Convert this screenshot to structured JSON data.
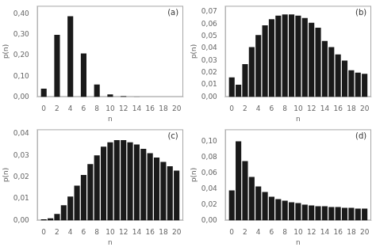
{
  "chart_data": [
    {
      "type": "bar",
      "x": [
        0,
        1,
        2,
        3,
        4,
        5,
        6,
        7,
        8,
        9,
        10,
        11,
        12,
        13,
        14,
        15,
        16,
        17,
        18,
        19,
        20
      ],
      "values": [
        0.04,
        0.0,
        0.3,
        0.0,
        0.39,
        0.0,
        0.21,
        0.0,
        0.06,
        0.0,
        0.012,
        0.0,
        0.003,
        0.0,
        0.0005,
        0.0,
        0.0,
        0.0,
        0.0,
        0.0,
        0.0
      ],
      "color": "#1a1a1a",
      "xlim": [
        -1.0,
        21.0
      ],
      "xticks": [
        0,
        2,
        4,
        6,
        8,
        10,
        12,
        14,
        16,
        18,
        20
      ],
      "ylim": [
        0,
        0.44
      ],
      "yticks": [
        {
          "value": 0.0,
          "label": "0,00"
        },
        {
          "value": 0.1,
          "label": "0,10"
        },
        {
          "value": 0.2,
          "label": "0,20"
        },
        {
          "value": 0.3,
          "label": "0,30"
        },
        {
          "value": 0.4,
          "label": "0,40"
        }
      ],
      "xlabel": "n",
      "ylabel": "p(n)",
      "annotations": [
        "(a)"
      ],
      "grid": false
    },
    {
      "type": "bar",
      "x": [
        0,
        1,
        2,
        3,
        4,
        5,
        6,
        7,
        8,
        9,
        10,
        11,
        12,
        13,
        14,
        15,
        16,
        17,
        18,
        19,
        20
      ],
      "values": [
        0.016,
        0.01,
        0.027,
        0.041,
        0.051,
        0.059,
        0.064,
        0.067,
        0.068,
        0.068,
        0.067,
        0.065,
        0.061,
        0.057,
        0.046,
        0.041,
        0.035,
        0.03,
        0.022,
        0.02,
        0.019
      ],
      "color": "#1a1a1a",
      "xlim": [
        -1.0,
        21.0
      ],
      "xticks": [
        0,
        2,
        4,
        6,
        8,
        10,
        12,
        14,
        16,
        18,
        20
      ],
      "ylim": [
        0,
        0.075
      ],
      "yticks": [
        {
          "value": 0.0,
          "label": "0,00"
        },
        {
          "value": 0.01,
          "label": "0,01"
        },
        {
          "value": 0.02,
          "label": "0,02"
        },
        {
          "value": 0.03,
          "label": "0,03"
        },
        {
          "value": 0.04,
          "label": "0,04"
        },
        {
          "value": 0.05,
          "label": "0,05"
        },
        {
          "value": 0.06,
          "label": "0,06"
        },
        {
          "value": 0.07,
          "label": "0,07"
        }
      ],
      "xlabel": "n",
      "ylabel": "p(n)",
      "annotations": [
        "(b)"
      ],
      "grid": false
    },
    {
      "type": "bar",
      "x": [
        0,
        1,
        2,
        3,
        4,
        5,
        6,
        7,
        8,
        9,
        10,
        11,
        12,
        13,
        14,
        15,
        16,
        17,
        18,
        19,
        20
      ],
      "values": [
        0.0005,
        0.001,
        0.003,
        0.007,
        0.011,
        0.016,
        0.021,
        0.026,
        0.03,
        0.034,
        0.036,
        0.037,
        0.037,
        0.036,
        0.035,
        0.033,
        0.031,
        0.029,
        0.027,
        0.025,
        0.023
      ],
      "color": "#1a1a1a",
      "xlim": [
        -1.0,
        21.0
      ],
      "xticks": [
        0,
        2,
        4,
        6,
        8,
        10,
        12,
        14,
        16,
        18,
        20
      ],
      "ylim": [
        0,
        0.042
      ],
      "yticks": [
        {
          "value": 0.0,
          "label": "0,00"
        },
        {
          "value": 0.01,
          "label": "0,01"
        },
        {
          "value": 0.02,
          "label": "0,02"
        },
        {
          "value": 0.03,
          "label": "0,03"
        },
        {
          "value": 0.04,
          "label": "0,04"
        }
      ],
      "xlabel": "n",
      "ylabel": "p(n)",
      "annotations": [
        "(c)"
      ],
      "grid": false
    },
    {
      "type": "bar",
      "x": [
        0,
        1,
        2,
        3,
        4,
        5,
        6,
        7,
        8,
        9,
        10,
        11,
        12,
        13,
        14,
        15,
        16,
        17,
        18,
        19,
        20
      ],
      "values": [
        0.038,
        0.1,
        0.075,
        0.055,
        0.043,
        0.036,
        0.03,
        0.027,
        0.025,
        0.023,
        0.022,
        0.02,
        0.019,
        0.018,
        0.018,
        0.017,
        0.017,
        0.016,
        0.016,
        0.015,
        0.015
      ],
      "color": "#1a1a1a",
      "xlim": [
        -1.0,
        21.0
      ],
      "xticks": [
        0,
        2,
        4,
        6,
        8,
        10,
        12,
        14,
        16,
        18,
        20
      ],
      "ylim": [
        0,
        0.115
      ],
      "yticks": [
        {
          "value": 0.0,
          "label": "0,00"
        },
        {
          "value": 0.02,
          "label": "0,02"
        },
        {
          "value": 0.04,
          "label": "0,04"
        },
        {
          "value": 0.06,
          "label": "0,06"
        },
        {
          "value": 0.08,
          "label": "0,08"
        },
        {
          "value": 0.1,
          "label": "0,10"
        }
      ],
      "xlabel": "n",
      "ylabel": "p(n)",
      "annotations": [
        "(d)"
      ],
      "grid": false
    }
  ]
}
